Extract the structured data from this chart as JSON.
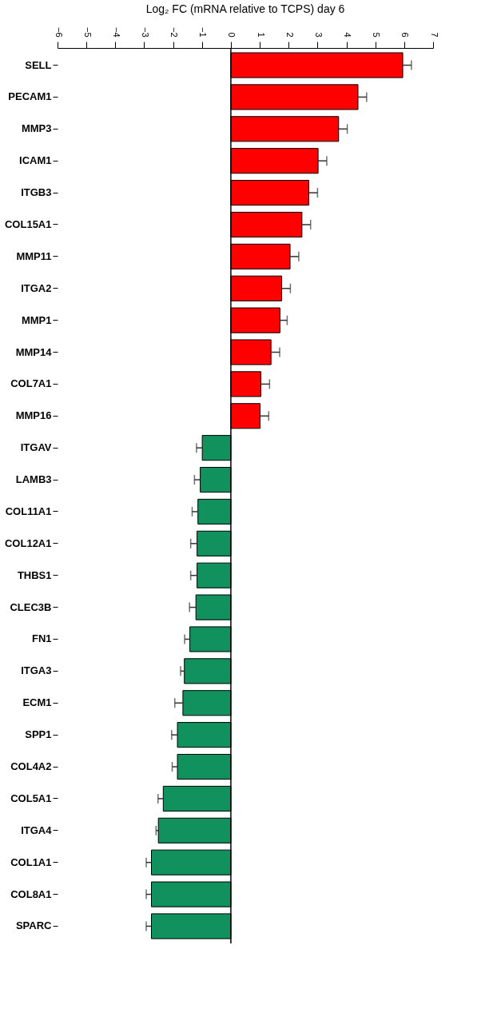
{
  "chart_data": {
    "type": "bar",
    "orientation": "horizontal",
    "title": "Log₂ FC (mRNA relative to TCPS) day 6",
    "categories": [
      "SELL",
      "PECAM1",
      "MMP3",
      "ICAM1",
      "ITGB3",
      "COL15A1",
      "MMP11",
      "ITGA2",
      "MMP1",
      "MMP14",
      "COL7A1",
      "MMP16",
      "ITGAV",
      "LAMB3",
      "COL11A1",
      "COL12A1",
      "THBS1",
      "CLEC3B",
      "FN1",
      "ITGA3",
      "ECM1",
      "SPP1",
      "COL4A2",
      "COL5A1",
      "ITGA4",
      "COL1A1",
      "COL8A1",
      "SPARC"
    ],
    "values": [
      5.95,
      4.4,
      3.73,
      3.02,
      2.7,
      2.46,
      2.05,
      1.76,
      1.7,
      1.39,
      1.04,
      1.01,
      -0.99,
      -1.06,
      -1.14,
      -1.17,
      -1.17,
      -1.21,
      -1.42,
      -1.61,
      -1.66,
      -1.85,
      -1.85,
      -2.34,
      -2.51,
      -2.75,
      -2.75,
      -2.75
    ],
    "errors": [
      0.3,
      0.3,
      0.3,
      0.3,
      0.3,
      0.3,
      0.3,
      0.3,
      0.25,
      0.3,
      0.3,
      0.3,
      0.2,
      0.2,
      0.2,
      0.22,
      0.22,
      0.22,
      0.18,
      0.13,
      0.28,
      0.2,
      0.18,
      0.18,
      0.08,
      0.18,
      0.18,
      0.18
    ],
    "colors": [
      "#ff0000",
      "#ff0000",
      "#ff0000",
      "#ff0000",
      "#ff0000",
      "#ff0000",
      "#ff0000",
      "#ff0000",
      "#ff0000",
      "#ff0000",
      "#ff0000",
      "#ff0000",
      "#10915e",
      "#10915e",
      "#10915e",
      "#10915e",
      "#10915e",
      "#10915e",
      "#10915e",
      "#10915e",
      "#10915e",
      "#10915e",
      "#10915e",
      "#10915e",
      "#10915e",
      "#10915e",
      "#10915e",
      "#10915e"
    ],
    "xlim": [
      -6,
      7
    ],
    "xticks": [
      -6,
      -5,
      -4,
      -3,
      -2,
      -1,
      0,
      1,
      2,
      3,
      4,
      5,
      6,
      7
    ],
    "ref_lines": [
      {
        "axis": "x",
        "value": 0,
        "color": "#000000"
      }
    ],
    "grid": false
  }
}
